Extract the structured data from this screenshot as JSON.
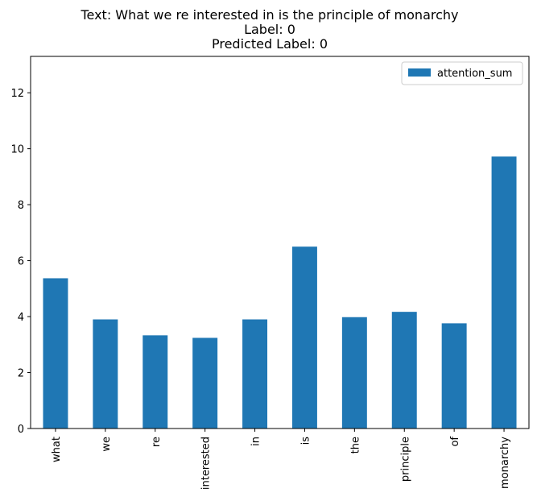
{
  "chart_data": {
    "type": "bar",
    "title_lines": [
      "Text: What we re interested in is the principle of monarchy",
      "Label: 0",
      "Predicted Label: 0"
    ],
    "xlabel": "",
    "ylabel": "",
    "categories": [
      "what",
      "we",
      "re",
      "interested",
      "in",
      "is",
      "the",
      "principle",
      "of",
      "monarchy"
    ],
    "series": [
      {
        "name": "attention_sum",
        "color": "#1f77b4",
        "values": [
          5.37,
          3.9,
          3.33,
          3.24,
          3.9,
          6.5,
          3.98,
          4.17,
          3.76,
          9.72
        ]
      }
    ],
    "ylim": [
      0,
      13.3
    ],
    "yticks": [
      0,
      2,
      4,
      6,
      8,
      10,
      12
    ],
    "grid": false,
    "legend": "top-right",
    "x_tick_rotation": "vertical"
  }
}
